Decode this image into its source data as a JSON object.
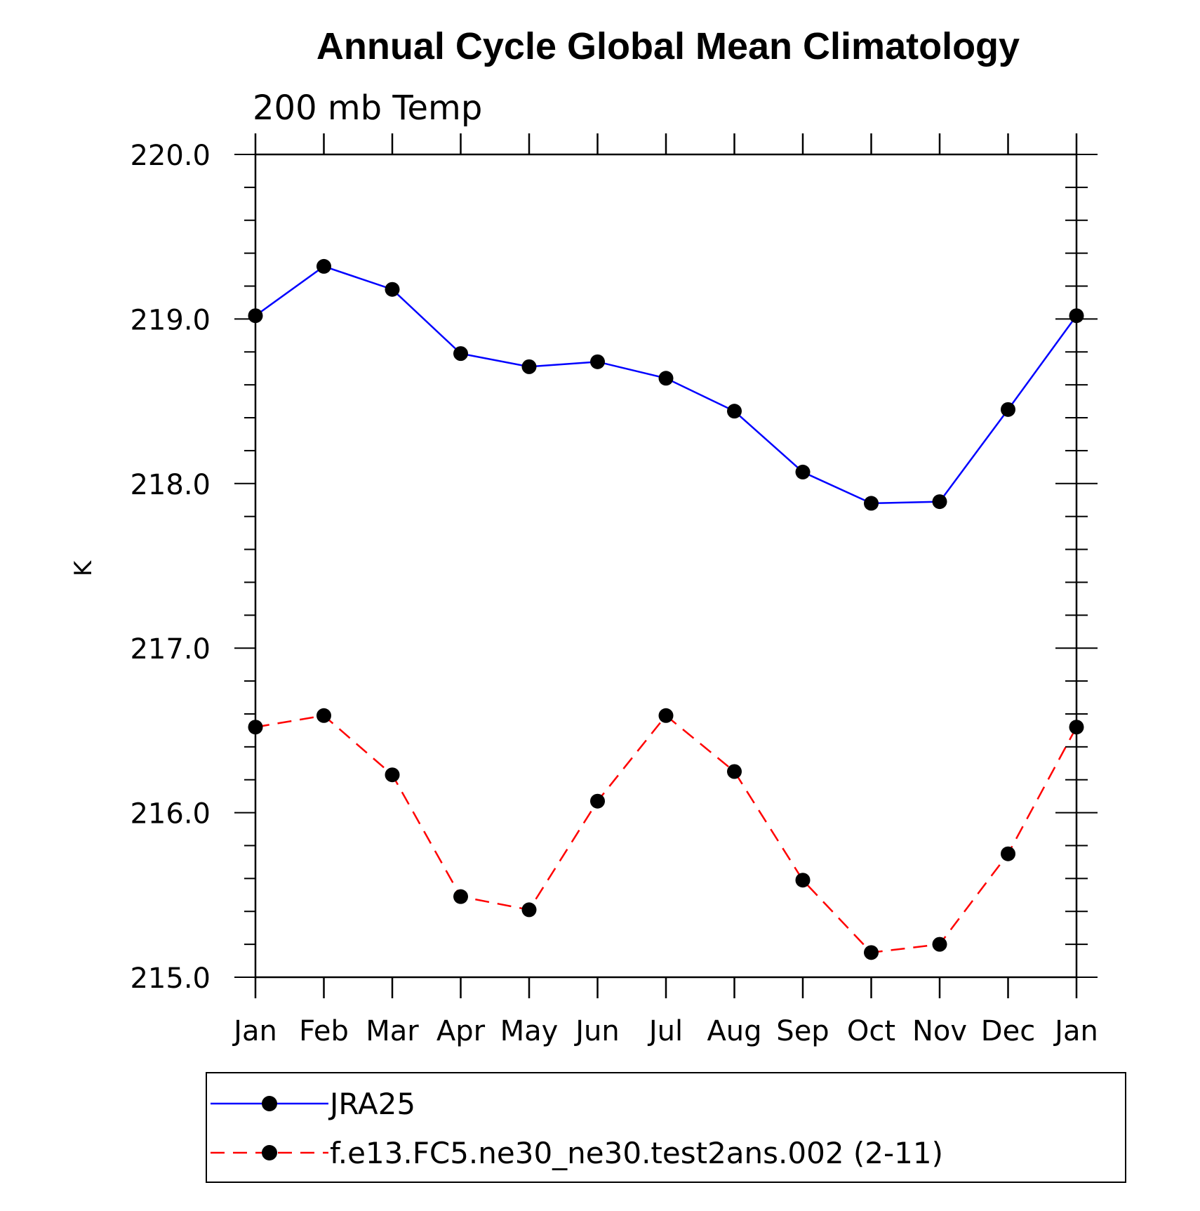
{
  "chart_data": {
    "type": "line",
    "title": "Annual Cycle Global Mean Climatology",
    "subtitle": "200 mb Temp",
    "xlabel": "",
    "ylabel": "K",
    "categories": [
      "Jan",
      "Feb",
      "Mar",
      "Apr",
      "May",
      "Jun",
      "Jul",
      "Aug",
      "Sep",
      "Oct",
      "Nov",
      "Dec",
      "Jan"
    ],
    "ylim": [
      215.0,
      220.0
    ],
    "yticks": [
      "215.0",
      "216.0",
      "217.0",
      "218.0",
      "219.0",
      "220.0"
    ],
    "grid": false,
    "legend_position": "bottom",
    "series": [
      {
        "name": "JRA25",
        "color": "#0000ff",
        "line_style": "solid",
        "marker": "filled-circle",
        "values": [
          219.02,
          219.32,
          219.18,
          218.79,
          218.71,
          218.74,
          218.64,
          218.44,
          218.07,
          217.88,
          217.89,
          218.45,
          219.02
        ]
      },
      {
        "name": "f.e13.FC5.ne30_ne30.test2ans.002 (2-11)",
        "color": "#ff0000",
        "line_style": "dashed",
        "marker": "filled-circle",
        "values": [
          216.52,
          216.59,
          216.23,
          215.49,
          215.41,
          216.07,
          216.59,
          216.25,
          215.59,
          215.15,
          215.2,
          215.75,
          216.52
        ]
      }
    ]
  }
}
